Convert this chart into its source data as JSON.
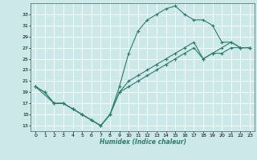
{
  "xlabel": "Humidex (Indice chaleur)",
  "background_color": "#cce8e8",
  "line_color": "#2e7d6e",
  "grid_color": "#ffffff",
  "xlim": [
    -0.5,
    23.5
  ],
  "ylim": [
    12,
    35
  ],
  "yticks": [
    13,
    15,
    17,
    19,
    21,
    23,
    25,
    27,
    29,
    31,
    33
  ],
  "xticks": [
    0,
    1,
    2,
    3,
    4,
    5,
    6,
    7,
    8,
    9,
    10,
    11,
    12,
    13,
    14,
    15,
    16,
    17,
    18,
    19,
    20,
    21,
    22,
    23
  ],
  "curve1_x": [
    0,
    1,
    2,
    3,
    4,
    5,
    6,
    7,
    8,
    9,
    10,
    11,
    12,
    13,
    14,
    15,
    16,
    17,
    18,
    19,
    20,
    21,
    22,
    23
  ],
  "curve1_y": [
    20,
    19,
    17,
    17,
    16,
    15,
    14,
    13,
    15,
    20,
    26,
    30,
    32,
    33,
    34,
    34.5,
    33,
    32,
    32,
    31,
    28,
    28,
    27,
    27
  ],
  "curve2_x": [
    0,
    2,
    3,
    4,
    5,
    6,
    7,
    8,
    9,
    10,
    11,
    12,
    13,
    14,
    15,
    16,
    17,
    18,
    19,
    20,
    21,
    22,
    23
  ],
  "curve2_y": [
    20,
    17,
    17,
    16,
    15,
    14,
    13,
    15,
    19,
    20,
    21,
    22,
    23,
    24,
    25,
    26,
    27,
    25,
    26,
    27,
    28,
    27,
    27
  ],
  "curve3_x": [
    0,
    1,
    2,
    3,
    4,
    5,
    6,
    7,
    8,
    9,
    10,
    11,
    12,
    13,
    14,
    15,
    16,
    17,
    18,
    19,
    20,
    21,
    22,
    23
  ],
  "curve3_y": [
    20,
    19,
    17,
    17,
    16,
    15,
    14,
    13,
    15,
    19,
    21,
    22,
    23,
    24,
    25,
    26,
    27,
    28,
    25,
    26,
    26,
    27,
    27,
    27
  ]
}
